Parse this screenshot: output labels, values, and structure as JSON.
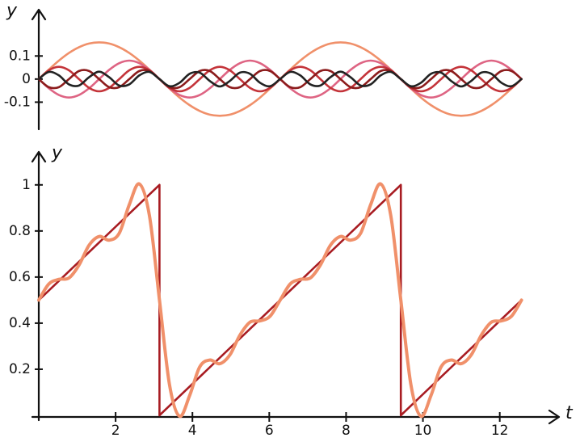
{
  "chart_data": [
    {
      "type": "line",
      "ylabel": "y",
      "x": [
        0,
        0.262,
        0.524,
        0.785,
        1.047,
        1.309,
        1.571,
        1.833,
        2.094,
        2.356,
        2.618,
        2.88,
        3.142,
        3.403,
        3.665,
        3.927,
        4.189,
        4.451,
        4.712,
        4.974,
        5.236,
        5.498,
        5.76,
        6.021,
        6.283,
        6.545,
        6.807,
        7.069,
        7.33,
        7.592,
        7.854,
        8.116,
        8.378,
        8.639,
        8.901,
        9.163,
        9.425,
        9.687,
        9.948,
        10.21,
        10.472,
        10.734,
        10.996,
        11.257,
        11.519,
        11.781,
        12.043,
        12.305,
        12.566
      ],
      "xlim": [
        0,
        13.5
      ],
      "ylim": [
        -0.2,
        0.29
      ],
      "yticks": [
        0.1,
        0,
        -0.1
      ],
      "series": [
        {
          "color": "#f0906a",
          "values": [
            0,
            0.041,
            0.08,
            0.113,
            0.138,
            0.154,
            0.159,
            0.154,
            0.138,
            0.113,
            0.08,
            0.041,
            0,
            -0.041,
            -0.08,
            -0.113,
            -0.138,
            -0.154,
            -0.159,
            -0.154,
            -0.138,
            -0.113,
            -0.08,
            -0.041,
            0,
            0.041,
            0.08,
            0.113,
            0.138,
            0.154,
            0.159,
            0.154,
            0.138,
            0.113,
            0.08,
            0.041,
            0,
            -0.041,
            -0.08,
            -0.113,
            -0.138,
            -0.154,
            -0.159,
            -0.154,
            -0.138,
            -0.113,
            -0.08,
            -0.041,
            0
          ]
        },
        {
          "color": "#de6483",
          "values": [
            0,
            -0.04,
            -0.069,
            -0.08,
            -0.069,
            -0.04,
            0,
            0.04,
            0.069,
            0.08,
            0.069,
            0.04,
            0,
            -0.04,
            -0.069,
            -0.08,
            -0.069,
            -0.04,
            0,
            0.04,
            0.069,
            0.08,
            0.069,
            0.04,
            0,
            -0.04,
            -0.069,
            -0.08,
            -0.069,
            -0.04,
            0,
            0.04,
            0.069,
            0.08,
            0.069,
            0.04,
            0,
            -0.04,
            -0.069,
            -0.08,
            -0.069,
            -0.04,
            0,
            0.04,
            0.069,
            0.08,
            0.069,
            0.04,
            0
          ]
        },
        {
          "color": "#c4343a",
          "values": [
            0,
            0.038,
            0.053,
            0.038,
            0,
            -0.038,
            -0.053,
            -0.038,
            0,
            0.038,
            0.053,
            0.038,
            0,
            -0.038,
            -0.053,
            -0.038,
            0,
            0.038,
            0.053,
            0.038,
            0,
            -0.038,
            -0.053,
            -0.038,
            0,
            0.038,
            0.053,
            0.038,
            0,
            -0.038,
            -0.053,
            -0.038,
            0,
            0.038,
            0.053,
            0.038,
            0,
            -0.038,
            -0.053,
            -0.038,
            0,
            0.038,
            0.053,
            0.038,
            0,
            -0.038,
            -0.053,
            -0.038,
            0
          ]
        },
        {
          "color": "#8c1c1c",
          "values": [
            0,
            -0.035,
            -0.035,
            0,
            0.035,
            0.035,
            0,
            -0.035,
            -0.035,
            0,
            0.035,
            0.035,
            0,
            -0.035,
            -0.035,
            0,
            0.035,
            0.035,
            0,
            -0.035,
            -0.035,
            0,
            0.035,
            0.035,
            0,
            -0.035,
            -0.035,
            0,
            0.035,
            0.035,
            0,
            -0.035,
            -0.035,
            0,
            0.035,
            0.035,
            0,
            -0.035,
            -0.035,
            0,
            0.035,
            0.035,
            0,
            -0.035,
            -0.035,
            0,
            0.035,
            0.035,
            0
          ]
        },
        {
          "color": "#222222",
          "values": [
            0,
            0.031,
            0.016,
            -0.023,
            -0.028,
            0.008,
            0.032,
            0.008,
            -0.028,
            -0.023,
            0.016,
            0.031,
            0,
            -0.031,
            -0.016,
            0.023,
            0.028,
            -0.008,
            -0.032,
            -0.008,
            0.028,
            0.023,
            -0.016,
            -0.031,
            0,
            0.031,
            0.016,
            -0.023,
            -0.028,
            0.008,
            0.032,
            0.008,
            -0.028,
            -0.023,
            0.016,
            0.031,
            0,
            -0.031,
            -0.016,
            0.023,
            0.028,
            -0.008,
            -0.032,
            -0.008,
            0.028,
            0.023,
            -0.016,
            -0.031,
            0
          ]
        }
      ]
    },
    {
      "type": "line",
      "ylabel": "y",
      "xlabel": "t",
      "x": [
        0,
        0.262,
        0.524,
        0.785,
        1.047,
        1.309,
        1.571,
        1.833,
        2.094,
        2.356,
        2.618,
        2.88,
        3.142,
        3.403,
        3.665,
        3.927,
        4.189,
        4.451,
        4.712,
        4.974,
        5.236,
        5.498,
        5.76,
        6.021,
        6.283,
        6.545,
        6.807,
        7.069,
        7.33,
        7.592,
        7.854,
        8.116,
        8.378,
        8.639,
        8.901,
        9.163,
        9.425,
        9.687,
        9.948,
        10.21,
        10.472,
        10.734,
        10.996,
        11.257,
        11.519,
        11.781,
        12.043,
        12.305,
        12.566
      ],
      "xlim": [
        0,
        13.5
      ],
      "ylim": [
        0,
        1.15
      ],
      "xticks": [
        2,
        4,
        6,
        8,
        10,
        12
      ],
      "yticks": [
        0.2,
        0.4,
        0.6,
        0.8,
        1
      ],
      "series": [
        {
          "color": "#a81c22",
          "x": [
            0,
            3.142,
            3.142,
            9.425,
            9.425,
            12.566
          ],
          "values": [
            0.5,
            1,
            0,
            1,
            0,
            0.5
          ]
        },
        {
          "color": "#f0906a",
          "values": [
            0.5,
            0.57,
            0.59,
            0.596,
            0.652,
            0.738,
            0.776,
            0.76,
            0.79,
            0.914,
            1.004,
            0.867,
            0.5,
            0.133,
            -0.004,
            0.086,
            0.21,
            0.24,
            0.224,
            0.262,
            0.348,
            0.404,
            0.41,
            0.43,
            0.5,
            0.57,
            0.59,
            0.596,
            0.652,
            0.738,
            0.776,
            0.76,
            0.79,
            0.914,
            1.004,
            0.867,
            0.5,
            0.133,
            -0.004,
            0.086,
            0.21,
            0.24,
            0.224,
            0.262,
            0.348,
            0.404,
            0.41,
            0.43,
            0.5
          ]
        }
      ]
    }
  ]
}
